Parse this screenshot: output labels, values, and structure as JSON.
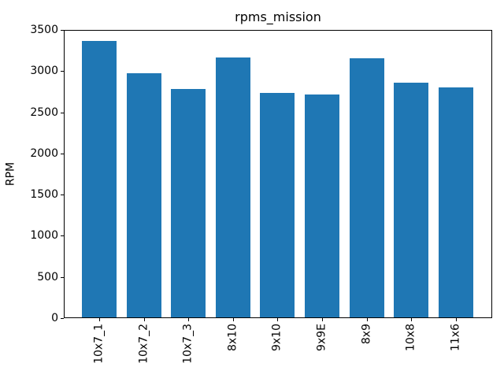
{
  "chart_data": {
    "type": "bar",
    "title": "rpms_mission",
    "xlabel": "",
    "ylabel": "RPM",
    "categories": [
      "10x7_1",
      "10x7_2",
      "10x7_3",
      "8x10",
      "9x10",
      "9x9E",
      "8x9",
      "10x8",
      "11x6"
    ],
    "values": [
      3355,
      2965,
      2770,
      3155,
      2725,
      2710,
      3150,
      2850,
      2790
    ],
    "ylim": [
      0,
      3500
    ],
    "yticks": [
      0,
      500,
      1000,
      1500,
      2000,
      2500,
      3000,
      3500
    ],
    "x_tick_rotation_degrees": 90,
    "grid": false,
    "legend": null,
    "bar_color": "#1f77b4",
    "background_color": "#ffffff",
    "text_color": "#000000"
  }
}
